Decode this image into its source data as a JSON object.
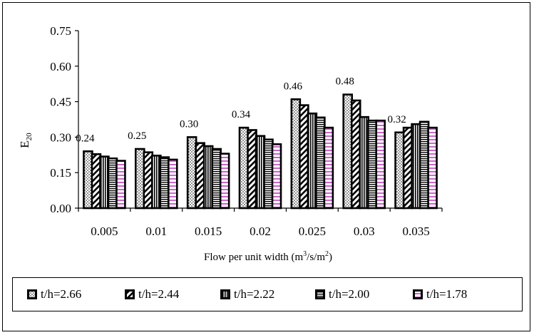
{
  "chart_data": {
    "type": "bar",
    "ylabel": "E20",
    "ylabel_main": "E",
    "ylabel_sub": "20",
    "xlabel_main": "Flow per unit width (m",
    "xlabel_sup1": "3",
    "xlabel_mid": "/s/m",
    "xlabel_sup2": "2",
    "xlabel_end": ")",
    "xlabel": "Flow per unit width (m3/s/m2)",
    "ylim": [
      0,
      0.75
    ],
    "yticks": [
      "0.00",
      "0.15",
      "0.30",
      "0.45",
      "0.60",
      "0.75"
    ],
    "categories": [
      "0.005",
      "0.01",
      "0.015",
      "0.02",
      "0.025",
      "0.03",
      "0.035"
    ],
    "series": [
      {
        "name": "t/h=2.66",
        "pattern": "dots",
        "values": [
          0.24,
          0.25,
          0.3,
          0.34,
          0.46,
          0.48,
          0.32
        ]
      },
      {
        "name": "t/h=2.44",
        "pattern": "diagonal",
        "values": [
          0.228,
          0.236,
          0.275,
          0.33,
          0.435,
          0.455,
          0.34
        ]
      },
      {
        "name": "t/h=2.22",
        "pattern": "vertical",
        "values": [
          0.218,
          0.222,
          0.262,
          0.305,
          0.4,
          0.385,
          0.355
        ]
      },
      {
        "name": "t/h=2.00",
        "pattern": "horizontal",
        "values": [
          0.21,
          0.215,
          0.25,
          0.29,
          0.383,
          0.37,
          0.365
        ]
      },
      {
        "name": "t/h=1.78",
        "pattern": "pink",
        "values": [
          0.2,
          0.205,
          0.23,
          0.27,
          0.34,
          0.37,
          0.34
        ]
      }
    ],
    "data_labels": [
      "0.24",
      "0.25",
      "0.30",
      "0.34",
      "0.46",
      "0.48",
      "0.32"
    ],
    "legend_position": "bottom",
    "grid": false
  }
}
